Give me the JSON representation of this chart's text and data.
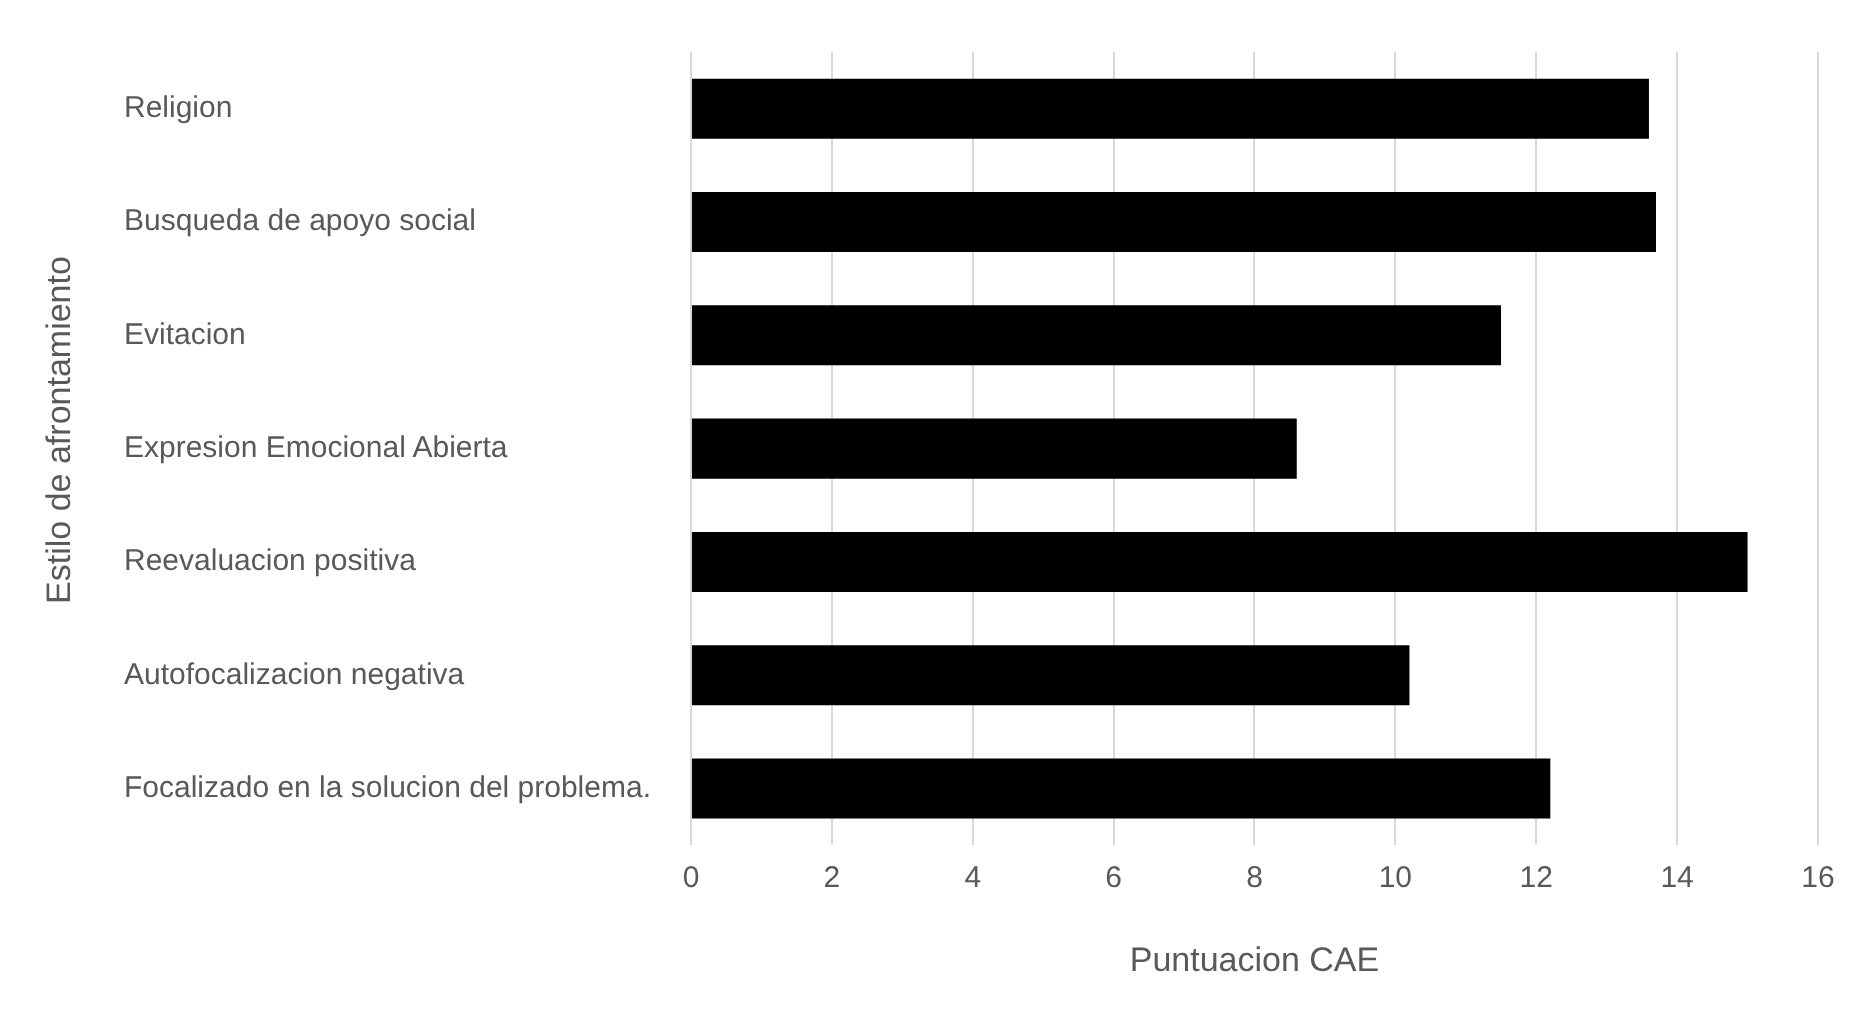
{
  "chart_data": {
    "type": "bar",
    "orientation": "horizontal",
    "xlabel": "Puntuacion CAE",
    "ylabel": "Estilo de afrontamiento",
    "categories": [
      "Religion",
      "Busqueda de apoyo social",
      "Evitacion",
      "Expresion Emocional Abierta",
      "Reevaluacion positiva",
      "Autofocalizacion negativa",
      "Focalizado en la solucion del problema."
    ],
    "values": [
      13.6,
      13.7,
      11.5,
      8.6,
      15.0,
      10.2,
      12.2
    ],
    "color": "#000000",
    "xlim": [
      0,
      16
    ],
    "xticks": [
      0,
      2,
      4,
      6,
      8,
      10,
      12,
      14,
      16
    ],
    "grid": "x",
    "legend": false
  }
}
